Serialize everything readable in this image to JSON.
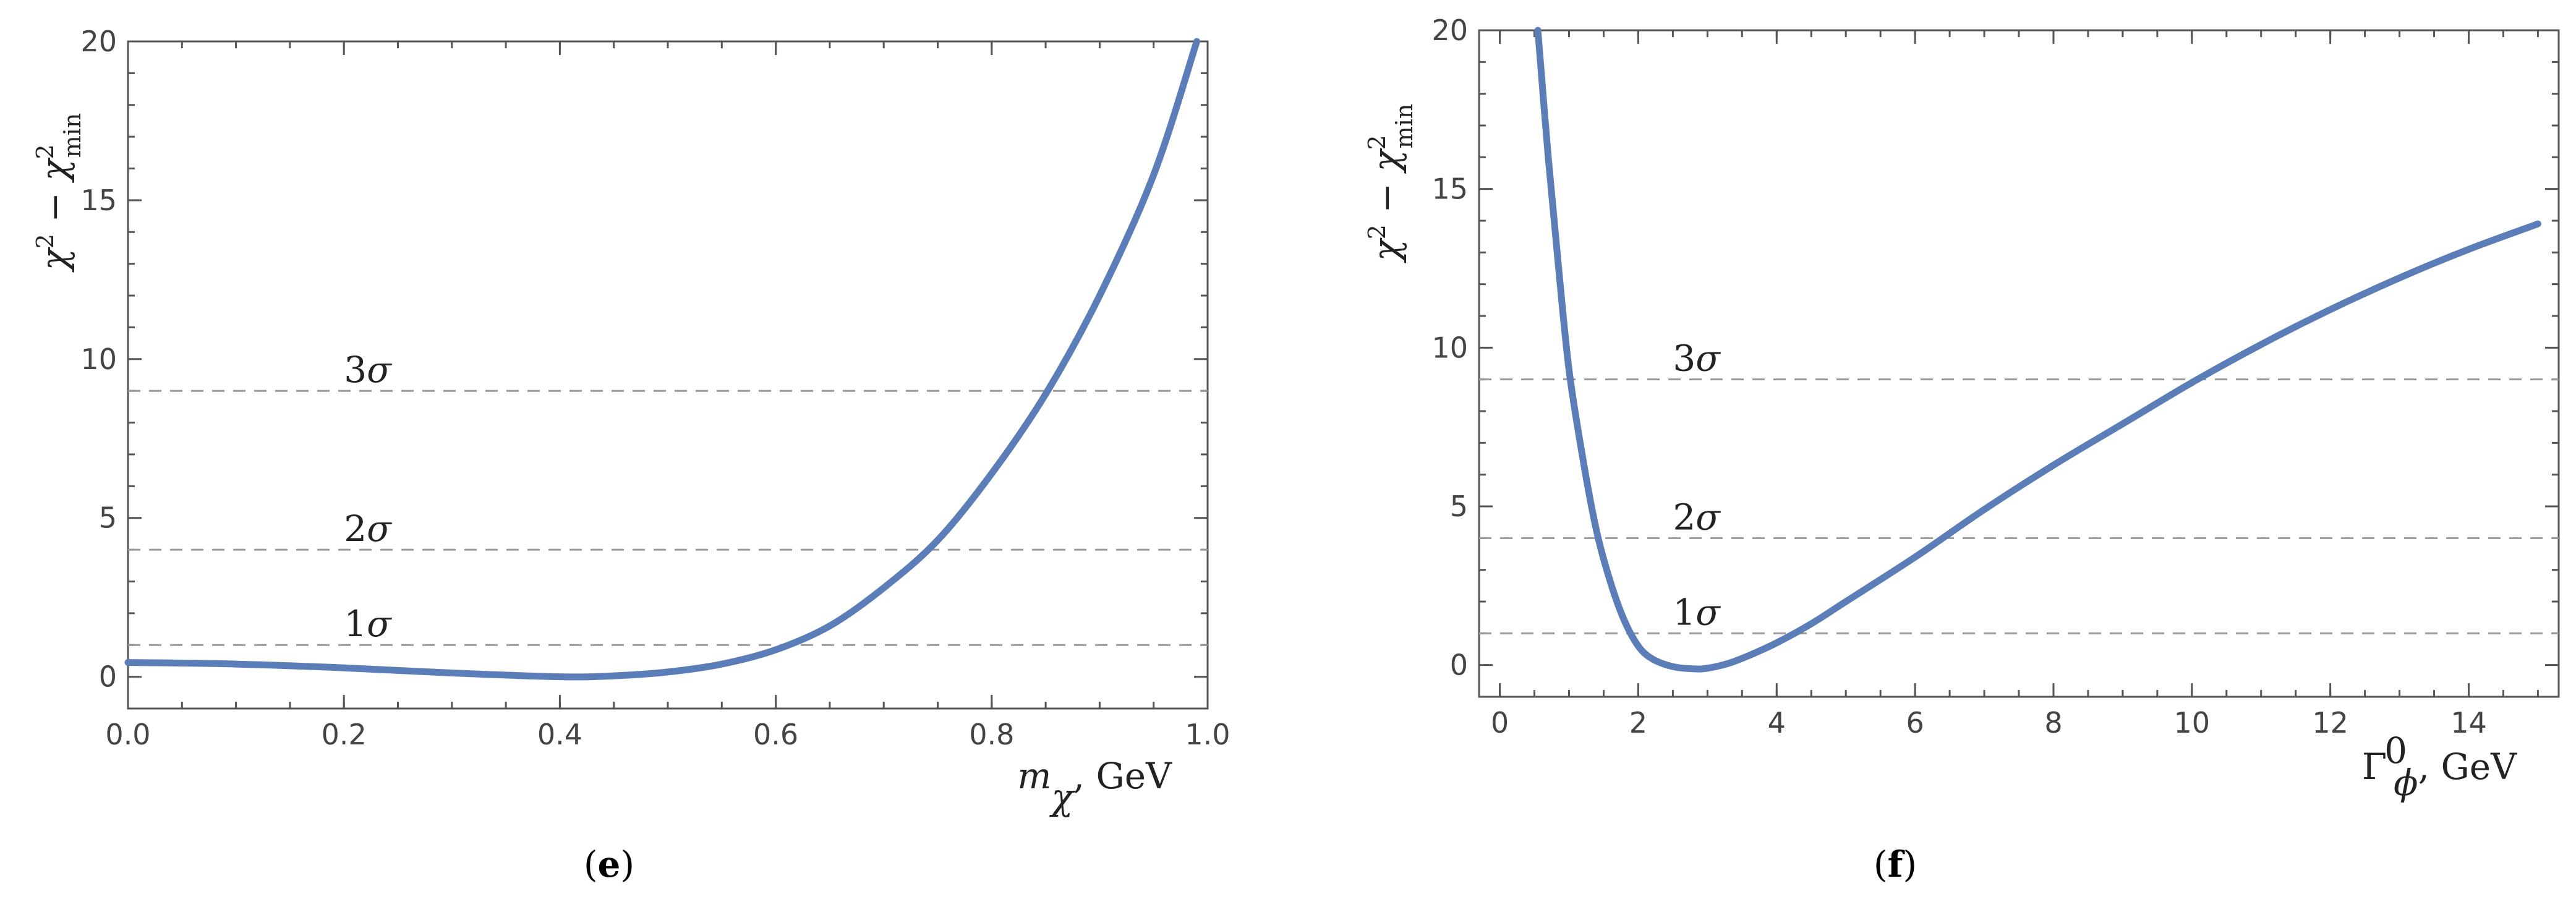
{
  "chart_data": [
    {
      "type": "line",
      "panel": "(e)",
      "ylabel": "χ² − χ²min",
      "xlabel": "mχ, GeV",
      "xlim": [
        0.0,
        1.0
      ],
      "ylim": [
        -1,
        20
      ],
      "x_ticks": [
        "0.0",
        "0.2",
        "0.4",
        "0.6",
        "0.8",
        "1.0"
      ],
      "y_ticks": [
        "0",
        "5",
        "10",
        "15",
        "20"
      ],
      "reference_lines": [
        {
          "y": 1,
          "label": "1σ"
        },
        {
          "y": 4,
          "label": "2σ"
        },
        {
          "y": 9,
          "label": "3σ"
        }
      ],
      "series": [
        {
          "color": "#5b7db8",
          "x": [
            0.0,
            0.1,
            0.2,
            0.3,
            0.4,
            0.45,
            0.5,
            0.55,
            0.6,
            0.65,
            0.7,
            0.75,
            0.8,
            0.85,
            0.9,
            0.95,
            0.99
          ],
          "y": [
            0.45,
            0.4,
            0.28,
            0.12,
            0.0,
            0.03,
            0.15,
            0.4,
            0.85,
            1.6,
            2.8,
            4.3,
            6.4,
            8.9,
            12.0,
            15.8,
            20.0
          ]
        }
      ]
    },
    {
      "type": "line",
      "panel": "(f)",
      "ylabel": "χ² − χ²min",
      "xlabel": "Γ⁰ϕ, GeV",
      "xlim": [
        -0.3,
        15.3
      ],
      "ylim": [
        -1,
        20
      ],
      "x_ticks": [
        "0",
        "2",
        "4",
        "6",
        "8",
        "10",
        "12",
        "14"
      ],
      "y_ticks": [
        "0",
        "5",
        "10",
        "15",
        "20"
      ],
      "reference_lines": [
        {
          "y": 1,
          "label": "1σ"
        },
        {
          "y": 4,
          "label": "2σ"
        },
        {
          "y": 9,
          "label": "3σ"
        }
      ],
      "series": [
        {
          "color": "#5b7db8",
          "x": [
            0.55,
            0.7,
            0.85,
            1.0,
            1.2,
            1.4,
            1.6,
            1.8,
            2.0,
            2.2,
            2.5,
            2.8,
            3.0,
            3.3,
            3.6,
            4.0,
            4.5,
            5.0,
            6.0,
            7.0,
            8.0,
            9.0,
            10.0,
            11.0,
            12.0,
            13.0,
            14.0,
            15.0
          ],
          "y": [
            20.0,
            16.0,
            12.5,
            9.3,
            6.5,
            4.2,
            2.6,
            1.4,
            0.6,
            0.2,
            -0.05,
            -0.12,
            -0.1,
            0.05,
            0.3,
            0.7,
            1.3,
            2.0,
            3.4,
            4.9,
            6.3,
            7.6,
            8.9,
            10.1,
            11.2,
            12.2,
            13.1,
            13.9
          ]
        }
      ]
    }
  ],
  "captions": {
    "left": "(e)",
    "left_letter": "e",
    "right": "(f)",
    "right_letter": "f"
  }
}
